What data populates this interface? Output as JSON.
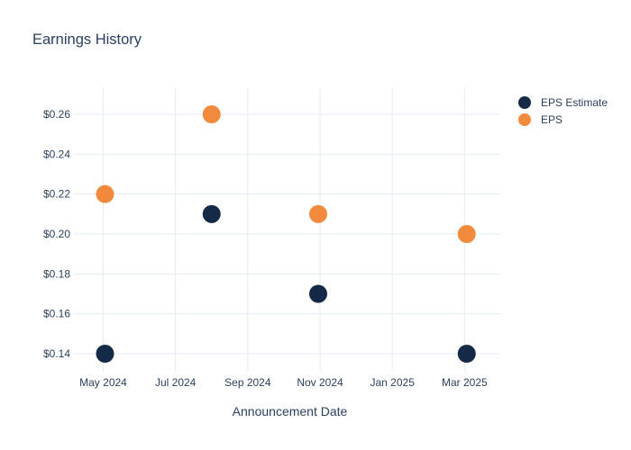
{
  "colors": {
    "text": "#2a3f5f",
    "grid": "#e5ebf5",
    "background": "#ffffff",
    "eps_estimate": "#152a46",
    "eps": "#f18a3d"
  },
  "chart_data": {
    "type": "scatter",
    "title": "Earnings History",
    "xlabel": "Announcement Date",
    "ylabel": "",
    "grid": true,
    "legend_position": "right-outside-top",
    "ylim": [
      0.133,
      0.273
    ],
    "xlim_months": [
      -0.66,
      11.0
    ],
    "x_ticks": [
      {
        "label": "May 2024",
        "month": 0
      },
      {
        "label": "Jul 2024",
        "month": 2
      },
      {
        "label": "Sep 2024",
        "month": 4
      },
      {
        "label": "Nov 2024",
        "month": 6
      },
      {
        "label": "Jan 2025",
        "month": 8
      },
      {
        "label": "Mar 2025",
        "month": 10
      }
    ],
    "y_ticks": [
      {
        "label": "$0.26",
        "value": 0.26
      },
      {
        "label": "$0.24",
        "value": 0.24
      },
      {
        "label": "$0.22",
        "value": 0.22
      },
      {
        "label": "$0.20",
        "value": 0.2
      },
      {
        "label": "$0.18",
        "value": 0.18
      },
      {
        "label": "$0.16",
        "value": 0.16
      },
      {
        "label": "$0.14",
        "value": 0.14
      }
    ],
    "series": [
      {
        "name": "EPS Estimate",
        "color": "#152a46",
        "points": [
          {
            "x_label": "May 2024",
            "month": 0.05,
            "value": 0.14
          },
          {
            "x_label": "Aug 2024",
            "month": 3.0,
            "value": 0.21
          },
          {
            "x_label": "Nov 2024",
            "month": 5.95,
            "value": 0.17
          },
          {
            "x_label": "Mar 2025",
            "month": 10.06,
            "value": 0.14
          }
        ]
      },
      {
        "name": "EPS",
        "color": "#f18a3d",
        "points": [
          {
            "x_label": "May 2024",
            "month": 0.05,
            "value": 0.22
          },
          {
            "x_label": "Aug 2024",
            "month": 3.0,
            "value": 0.26
          },
          {
            "x_label": "Nov 2024",
            "month": 5.95,
            "value": 0.21
          },
          {
            "x_label": "Mar 2025",
            "month": 10.06,
            "value": 0.2
          }
        ]
      }
    ]
  }
}
